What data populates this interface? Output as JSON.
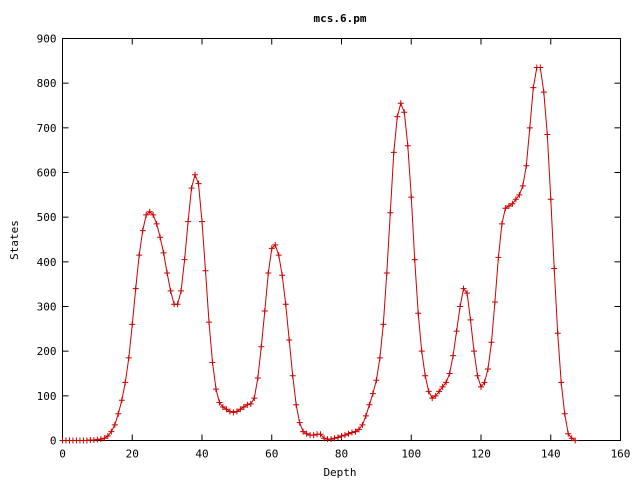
{
  "chart_data": {
    "type": "line",
    "title": "mcs.6.pm",
    "xlabel": "Depth",
    "ylabel": "States",
    "xlim": [
      0,
      160
    ],
    "ylim": [
      0,
      900
    ],
    "xticks": [
      0,
      20,
      40,
      60,
      80,
      100,
      120,
      140,
      160
    ],
    "yticks": [
      0,
      100,
      200,
      300,
      400,
      500,
      600,
      700,
      800,
      900
    ],
    "grid": false,
    "legend": "none",
    "marker": "plus",
    "color": "#cc0000",
    "series": [
      {
        "x": [
          0,
          1,
          2,
          3,
          4,
          5,
          6,
          7,
          8,
          9,
          10,
          11,
          12,
          13,
          14,
          15,
          16,
          17,
          18,
          19,
          20,
          21,
          22,
          23,
          24,
          25,
          26,
          27,
          28,
          29,
          30,
          31,
          32,
          33,
          34,
          35,
          36,
          37,
          38,
          39,
          40,
          41,
          42,
          43,
          44,
          45,
          46,
          47,
          48,
          49,
          50,
          51,
          52,
          53,
          54,
          55,
          56,
          57,
          58,
          59,
          60,
          61,
          62,
          63,
          64,
          65,
          66,
          67,
          68,
          69,
          70,
          71,
          72,
          73,
          74,
          75,
          76,
          77,
          78,
          79,
          80,
          81,
          82,
          83,
          84,
          85,
          86,
          87,
          88,
          89,
          90,
          91,
          92,
          93,
          94,
          95,
          96,
          97,
          98,
          99,
          100,
          101,
          102,
          103,
          104,
          105,
          106,
          107,
          108,
          109,
          110,
          111,
          112,
          113,
          114,
          115,
          116,
          117,
          118,
          119,
          120,
          121,
          122,
          123,
          124,
          125,
          126,
          127,
          128,
          129,
          130,
          131,
          132,
          133,
          134,
          135,
          136,
          137,
          138,
          139,
          140,
          141,
          142,
          143,
          144,
          145,
          146,
          147
        ],
        "y": [
          0,
          0,
          0,
          0,
          0,
          0,
          0,
          0,
          1,
          1,
          2,
          3,
          5,
          10,
          20,
          35,
          60,
          90,
          130,
          185,
          260,
          340,
          415,
          470,
          505,
          512,
          505,
          485,
          455,
          420,
          375,
          335,
          305,
          305,
          335,
          405,
          490,
          565,
          595,
          575,
          490,
          380,
          265,
          175,
          115,
          85,
          75,
          70,
          65,
          63,
          65,
          70,
          75,
          80,
          82,
          95,
          140,
          210,
          290,
          375,
          430,
          438,
          415,
          370,
          305,
          225,
          145,
          80,
          40,
          20,
          15,
          12,
          12,
          14,
          14,
          5,
          3,
          3,
          5,
          7,
          10,
          12,
          15,
          18,
          20,
          25,
          35,
          55,
          80,
          105,
          135,
          185,
          260,
          375,
          510,
          645,
          725,
          755,
          735,
          660,
          545,
          405,
          285,
          200,
          145,
          110,
          95,
          100,
          110,
          120,
          130,
          150,
          190,
          245,
          300,
          340,
          330,
          270,
          200,
          145,
          120,
          130,
          160,
          220,
          310,
          410,
          485,
          520,
          525,
          530,
          540,
          550,
          570,
          615,
          700,
          790,
          835,
          835,
          780,
          685,
          540,
          385,
          240,
          130,
          60,
          15,
          5,
          0
        ]
      }
    ]
  }
}
